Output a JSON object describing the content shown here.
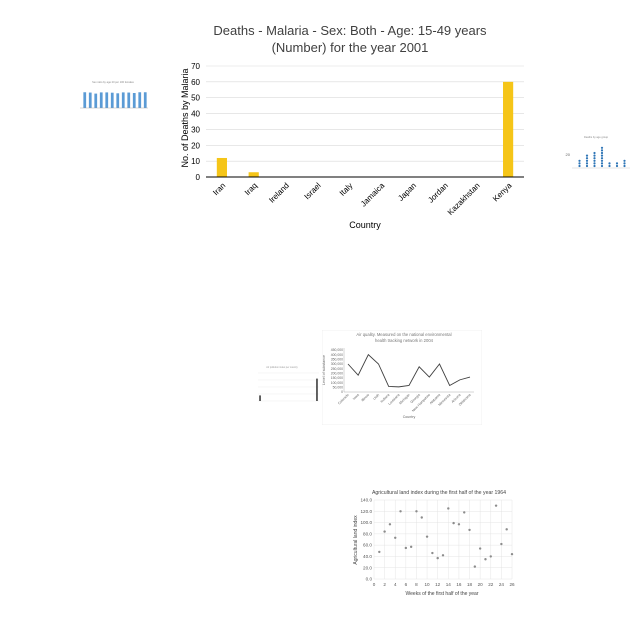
{
  "chart_data": [
    {
      "type": "bar",
      "title": "Deaths - Malaria - Sex: Both - Age: 15-49 years\n(Number) for the year 2001",
      "xlabel": "Country",
      "ylabel": "No. of Deaths by Malaria",
      "categories": [
        "Iran",
        "Iraq",
        "Ireland",
        "Israel",
        "Italy",
        "Jamaica",
        "Japan",
        "Jordan",
        "Kazakhstan",
        "Kenya"
      ],
      "values": [
        12,
        3,
        0,
        0,
        0,
        0,
        0,
        0,
        0,
        60
      ],
      "ylim": [
        0,
        70
      ],
      "yticks": [
        0,
        10,
        20,
        30,
        40,
        50,
        60,
        70
      ],
      "colors": {
        "bar": "#f5c518",
        "axis": "#000000",
        "grid": "#d9d9d9"
      }
    },
    {
      "type": "line",
      "title": "Air quality. Measured on the national environmental health tracking network in 2004",
      "xlabel": "Country",
      "ylabel": "Level of substance",
      "categories": [
        "Colorado",
        "Iowa",
        "Illinois",
        "Utah",
        "Indiana",
        "Louisiana",
        "Michigan",
        "Georgia",
        "New Hampshire",
        "Alabama",
        "Minnesota",
        "Arizona",
        "Oklahoma"
      ],
      "values": [
        300000,
        180000,
        400000,
        300000,
        60000,
        55000,
        70000,
        270000,
        160000,
        300000,
        70000,
        130000,
        160000
      ],
      "yticks": [
        "0",
        "50,000",
        "100,000",
        "150,000",
        "200,000",
        "250,000",
        "300,000",
        "350,000",
        "400,000",
        "450,000"
      ],
      "ylim": [
        0,
        450000
      ],
      "colors": {
        "line": "#404040"
      }
    },
    {
      "type": "scatter",
      "title": "Agricultural land index during the first half of the year 1964",
      "xlabel": "Weeks of the first half of the year",
      "ylabel": "Agricultural land index",
      "xticks": [
        "0",
        "2",
        "4",
        "6",
        "8",
        "10",
        "12",
        "14",
        "16",
        "18",
        "20",
        "22",
        "24",
        "26"
      ],
      "yticks": [
        "0.0",
        "20.0",
        "40.0",
        "60.0",
        "80.0",
        "100.0",
        "120.0",
        "140.0"
      ],
      "xlim": [
        0,
        26
      ],
      "ylim": [
        0,
        140
      ],
      "points": [
        [
          1,
          48
        ],
        [
          2,
          84
        ],
        [
          3,
          97
        ],
        [
          4,
          73
        ],
        [
          5,
          120
        ],
        [
          6,
          55
        ],
        [
          7,
          57
        ],
        [
          8,
          120
        ],
        [
          9,
          109
        ],
        [
          10,
          75
        ],
        [
          11,
          46
        ],
        [
          12,
          37
        ],
        [
          13,
          42
        ],
        [
          14,
          125
        ],
        [
          15,
          99
        ],
        [
          16,
          97
        ],
        [
          17,
          118
        ],
        [
          18,
          87
        ],
        [
          19,
          22
        ],
        [
          20,
          54
        ],
        [
          21,
          35
        ],
        [
          22,
          40
        ],
        [
          23,
          130
        ],
        [
          24,
          62
        ],
        [
          25,
          88
        ],
        [
          26,
          44
        ]
      ],
      "colors": {
        "point": "#8c8c8c"
      }
    },
    {
      "type": "bar",
      "title": "Sex ratio by age 20 per 100 females",
      "categories": [
        "A",
        "B",
        "C",
        "D",
        "E",
        "F",
        "G",
        "H",
        "I",
        "J",
        "K",
        "L"
      ],
      "values": [
        105,
        103,
        96,
        104,
        104,
        102,
        98,
        104,
        103,
        100,
        105,
        105
      ],
      "ylim": [
        0,
        120
      ],
      "colors": {
        "bar": "#5b9bd5"
      }
    },
    {
      "type": "scatter",
      "title": "Deaths by age group",
      "columns": [
        {
          "x": 1,
          "count": 3
        },
        {
          "x": 2,
          "count": 5
        },
        {
          "x": 3,
          "count": 6
        },
        {
          "x": 4,
          "count": 8
        },
        {
          "x": 5,
          "count": 2
        },
        {
          "x": 6,
          "count": 2
        },
        {
          "x": 7,
          "count": 3
        }
      ],
      "ylabel_tick": "20",
      "colors": {
        "point": "#2e75b6"
      }
    },
    {
      "type": "bar",
      "title": "Air pollution index per country",
      "values": [
        5,
        0,
        0,
        0,
        0,
        0,
        0,
        0,
        0,
        0,
        0,
        0,
        0,
        0,
        20
      ],
      "ylim": [
        0,
        25
      ],
      "colors": {
        "bar": "#404040"
      }
    }
  ]
}
